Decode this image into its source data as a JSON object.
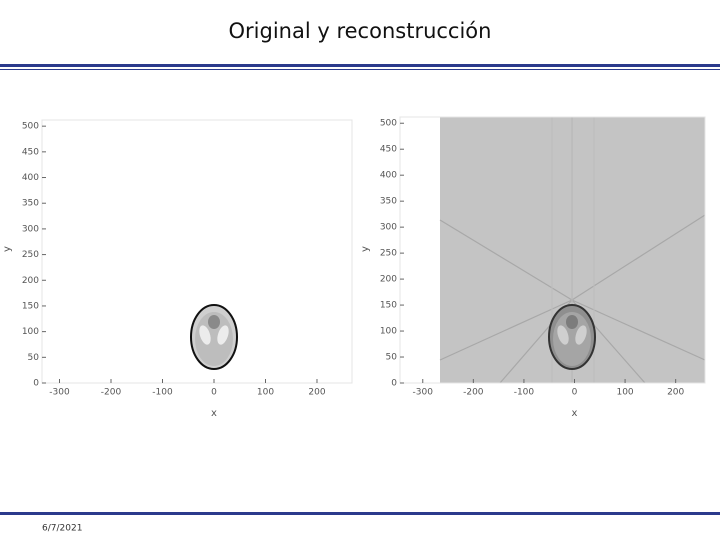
{
  "header": {
    "title": "Original y reconstrucción"
  },
  "footer": {
    "date": "6/7/2021"
  },
  "chart_data": [
    {
      "type": "image",
      "x_label": "x",
      "y_label": "y",
      "xlim": [
        -334,
        268
      ],
      "ylim": [
        0,
        512
      ],
      "xticks": [
        -300,
        -200,
        -100,
        0,
        100,
        200
      ],
      "yticks": [
        0,
        50,
        100,
        150,
        200,
        250,
        300,
        350,
        400,
        450,
        500
      ]
    },
    {
      "type": "image",
      "x_label": "x",
      "y_label": "y",
      "xlim": [
        -345,
        258
      ],
      "ylim": [
        0,
        512
      ],
      "xticks": [
        -300,
        -200,
        -100,
        0,
        100,
        200
      ],
      "yticks": [
        0,
        50,
        100,
        150,
        200,
        250,
        300,
        350,
        400,
        450,
        500
      ]
    }
  ]
}
